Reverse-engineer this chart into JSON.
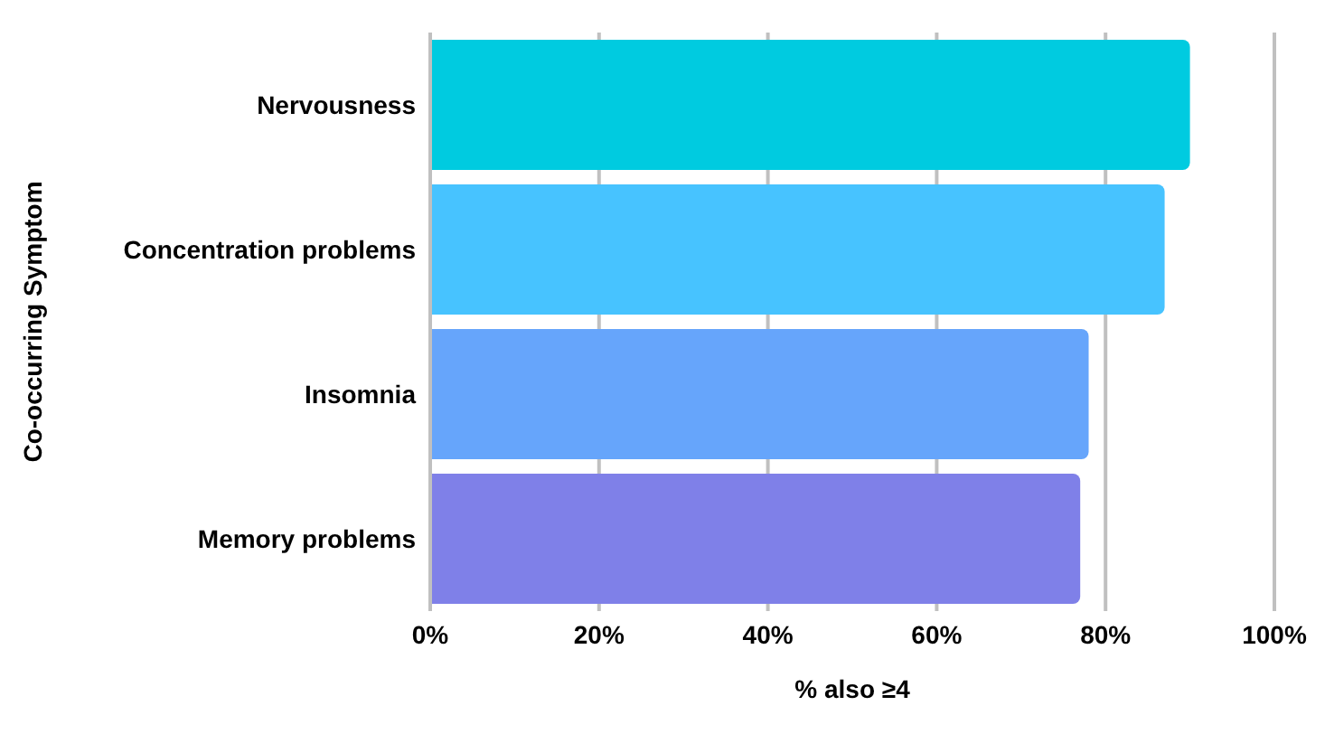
{
  "chart_data": {
    "type": "bar",
    "orientation": "horizontal",
    "xlabel": "% also ≥4",
    "ylabel": "Co-occurring Symptom",
    "categories": [
      "Nervousness",
      "Concentration problems",
      "Insomnia",
      "Memory problems"
    ],
    "values": [
      90,
      87,
      78,
      77
    ],
    "colors": [
      "#00cbe0",
      "#47c3ff",
      "#66a5fb",
      "#7f80e8"
    ],
    "xlim": [
      0,
      100
    ],
    "xticks": [
      {
        "value": 0,
        "label": "0%"
      },
      {
        "value": 20,
        "label": "20%"
      },
      {
        "value": 40,
        "label": "40%"
      },
      {
        "value": 60,
        "label": "60%"
      },
      {
        "value": 80,
        "label": "80%"
      },
      {
        "value": 100,
        "label": "100%"
      }
    ],
    "grid": "x"
  }
}
